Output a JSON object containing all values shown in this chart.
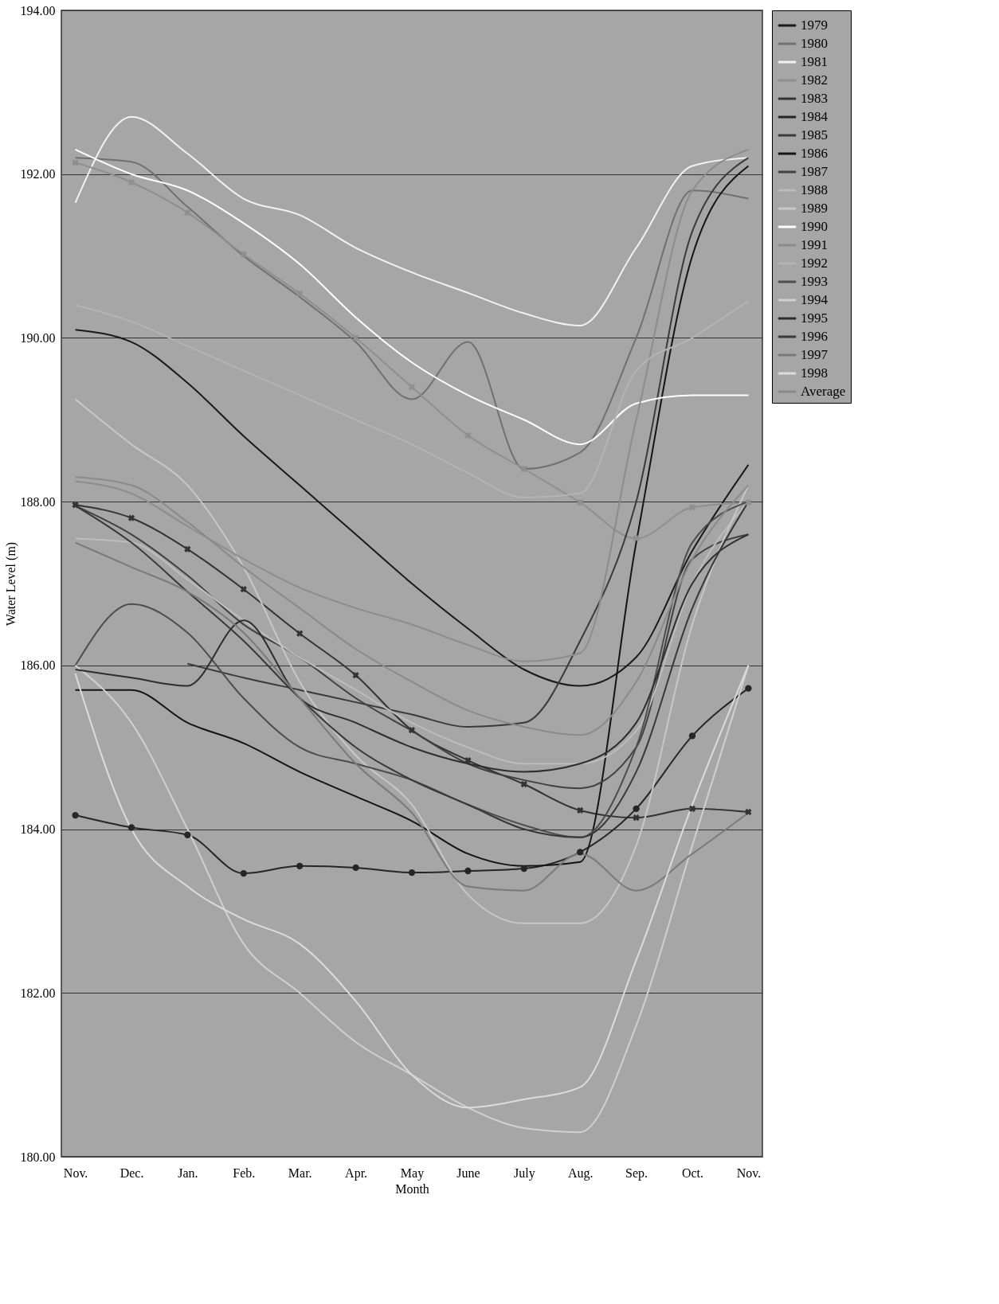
{
  "chart_data": {
    "type": "line",
    "xlabel": "Month",
    "ylabel": "Water Level (m)",
    "categories": [
      "Nov.",
      "Dec.",
      "Jan.",
      "Feb.",
      "Mar.",
      "Apr.",
      "May",
      "June",
      "July",
      "Aug.",
      "Sep.",
      "Oct.",
      "Nov."
    ],
    "ylim": [
      180,
      194
    ],
    "yticks": [
      {
        "value": 180,
        "label": "180.00"
      },
      {
        "value": 182,
        "label": "182.00"
      },
      {
        "value": 184,
        "label": "184.00"
      },
      {
        "value": 186,
        "label": "186.00"
      },
      {
        "value": 188,
        "label": "188.00"
      },
      {
        "value": 190,
        "label": "190.00"
      },
      {
        "value": 192,
        "label": "192.00"
      },
      {
        "value": 194,
        "label": "194.00"
      }
    ],
    "grid": "y",
    "legend": "right",
    "marker": "none",
    "line_style": "solid",
    "series": [
      {
        "name": "1979",
        "color": "#1a1a1a",
        "values": [
          190.1,
          189.95,
          189.45,
          188.8,
          188.2,
          187.6,
          187.0,
          186.45,
          185.95,
          185.75,
          186.1,
          187.4,
          188.45
        ]
      },
      {
        "name": "1980",
        "color": "#707070",
        "values": [
          192.2,
          192.15,
          191.6,
          191.0,
          190.5,
          189.95,
          189.25,
          189.95,
          188.4,
          188.6,
          190.0,
          191.8,
          191.7
        ]
      },
      {
        "name": "1981",
        "color": "#f2f2f2",
        "values": [
          191.65,
          192.7,
          192.25,
          191.7,
          191.5,
          191.1,
          190.8,
          190.55,
          190.3,
          190.15,
          191.1,
          192.1,
          192.2
        ]
      },
      {
        "name": "1982",
        "color": "#8f8f8f",
        "marker": "cross",
        "values": [
          192.14,
          191.9,
          191.53,
          191.02,
          190.54,
          190.0,
          189.4,
          188.81,
          188.4,
          187.99,
          187.55,
          187.93,
          187.99
        ]
      },
      {
        "name": "1983",
        "color": "#333333",
        "marker": "cross",
        "values": [
          187.96,
          187.8,
          187.42,
          186.93,
          186.39,
          185.88,
          185.21,
          184.84,
          184.55,
          184.23,
          184.14,
          184.25,
          184.21
        ]
      },
      {
        "name": "1984",
        "color": "#262626",
        "marker": "circle",
        "values": [
          184.17,
          184.02,
          183.93,
          183.46,
          183.55,
          183.53,
          183.47,
          183.49,
          183.52,
          183.72,
          184.25,
          185.14,
          185.72
        ]
      },
      {
        "name": "1985",
        "color": "#3a3a3a",
        "values": [
          null,
          null,
          186.02,
          185.85,
          185.7,
          185.55,
          185.4,
          185.25,
          185.3,
          186.3,
          188.0,
          191.3,
          192.2
        ]
      },
      {
        "name": "1986",
        "color": "#141414",
        "values": [
          185.7,
          185.7,
          185.3,
          185.05,
          184.7,
          184.4,
          184.1,
          183.7,
          183.55,
          183.6,
          187.5,
          191.0,
          192.1
        ]
      },
      {
        "name": "1987",
        "color": "#404040",
        "values": [
          187.95,
          187.6,
          187.1,
          186.5,
          186.1,
          185.6,
          185.2,
          184.8,
          184.6,
          184.5,
          185.0,
          187.3,
          187.6
        ]
      },
      {
        "name": "1988",
        "color": "#bdbdbd",
        "values": [
          187.55,
          187.5,
          187.05,
          186.55,
          186.1,
          185.7,
          185.3,
          185.0,
          184.8,
          184.8,
          185.2,
          187.0,
          188.0
        ]
      },
      {
        "name": "1989",
        "color": "#c8c8c8",
        "values": [
          189.25,
          188.7,
          188.2,
          187.2,
          185.8,
          184.9,
          184.3,
          183.2,
          182.85,
          182.85,
          183.8,
          186.5,
          188.2
        ]
      },
      {
        "name": "1990",
        "color": "#ffffff",
        "values": [
          192.3,
          192.0,
          191.8,
          191.4,
          190.9,
          190.25,
          189.7,
          189.3,
          189.0,
          188.7,
          189.2,
          189.3,
          189.3
        ]
      },
      {
        "name": "1991",
        "color": "#8c8c8c",
        "values": [
          188.25,
          188.1,
          187.7,
          187.3,
          186.95,
          186.7,
          186.5,
          186.25,
          186.05,
          186.15,
          189.0,
          191.8,
          192.3
        ]
      },
      {
        "name": "1992",
        "color": "#b4b4b4",
        "values": [
          190.4,
          190.2,
          189.9,
          189.6,
          189.3,
          189.0,
          188.7,
          188.35,
          188.05,
          188.1,
          189.6,
          190.0,
          190.45
        ]
      },
      {
        "name": "1993",
        "color": "#4d4d4d",
        "values": [
          186.0,
          186.75,
          186.4,
          185.6,
          185.0,
          184.8,
          184.6,
          184.3,
          184.05,
          183.9,
          185.0,
          187.5,
          188.0
        ]
      },
      {
        "name": "1994",
        "color": "#d0d0d0",
        "values": [
          186.0,
          185.3,
          184.0,
          182.6,
          182.0,
          181.4,
          181.0,
          180.6,
          180.35,
          180.3,
          181.6,
          183.8,
          186.0
        ]
      },
      {
        "name": "1995",
        "color": "#2e2e2e",
        "values": [
          185.95,
          185.85,
          185.75,
          186.55,
          185.6,
          185.3,
          185.0,
          184.8,
          184.7,
          184.8,
          185.3,
          187.0,
          187.6
        ]
      },
      {
        "name": "1996",
        "color": "#383838",
        "values": [
          187.95,
          187.5,
          186.9,
          186.3,
          185.6,
          185.0,
          184.6,
          184.3,
          184.0,
          183.9,
          184.7,
          186.7,
          188.0
        ]
      },
      {
        "name": "1997",
        "color": "#7a7a7a",
        "values": [
          187.5,
          187.2,
          186.9,
          186.4,
          185.6,
          184.8,
          184.2,
          183.3,
          183.25,
          183.7,
          183.25,
          183.7,
          184.2
        ]
      },
      {
        "name": "1998",
        "color": "#dcdcdc",
        "values": [
          185.9,
          184.0,
          183.3,
          182.9,
          182.6,
          181.9,
          181.0,
          180.6,
          180.7,
          180.85,
          182.4,
          184.3,
          186.0
        ]
      },
      {
        "name": "Average",
        "color": "#8a8a8a",
        "values": [
          188.3,
          188.2,
          187.75,
          187.2,
          186.7,
          186.2,
          185.8,
          185.45,
          185.25,
          185.15,
          185.8,
          187.3,
          188.2
        ]
      }
    ]
  }
}
